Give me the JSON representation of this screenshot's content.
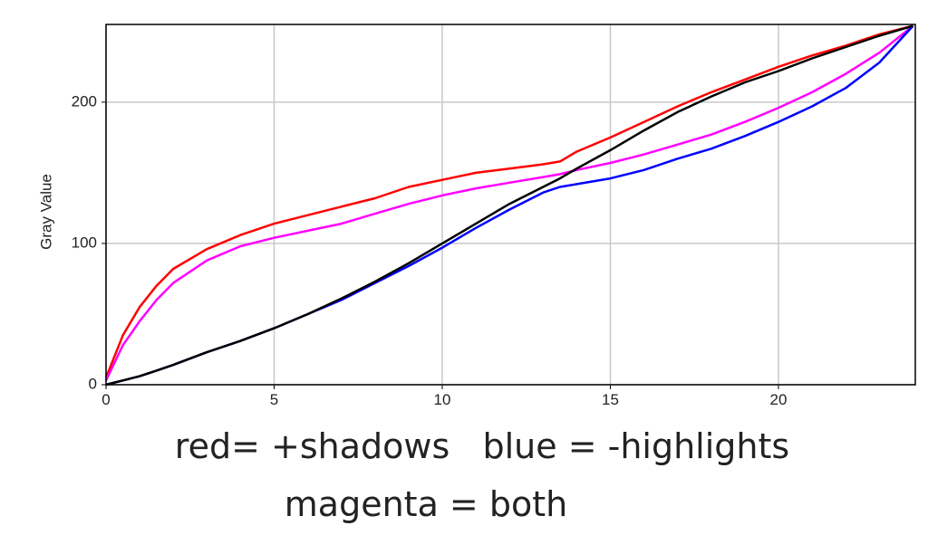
{
  "chart_data": {
    "type": "line",
    "ylabel": "Gray Value",
    "annotations": [
      "red= +shadows   blue = -highlights",
      "magenta = both"
    ],
    "x": [
      0,
      0.5,
      1,
      1.5,
      2,
      3,
      4,
      5,
      6,
      7,
      8,
      9,
      10,
      11,
      12,
      13,
      13.5,
      14,
      15,
      16,
      17,
      18,
      19,
      20,
      21,
      22,
      23,
      24
    ],
    "series": [
      {
        "color": "#ff0000",
        "values": [
          5,
          35,
          55,
          70,
          82,
          96,
          106,
          114,
          120,
          126,
          132,
          140,
          145,
          150,
          153,
          156,
          158,
          165,
          175,
          186,
          197,
          207,
          216,
          225,
          233,
          240,
          248,
          254
        ]
      },
      {
        "color": "#ff00ff",
        "values": [
          3,
          28,
          45,
          60,
          72,
          88,
          98,
          104,
          109,
          114,
          121,
          128,
          134,
          139,
          143,
          147,
          149,
          152,
          157,
          163,
          170,
          177,
          186,
          196,
          207,
          220,
          235,
          254
        ]
      },
      {
        "color": "#0000ff",
        "values": [
          0,
          3,
          6,
          10,
          14,
          23,
          31,
          40,
          50,
          60,
          72,
          84,
          97,
          111,
          124,
          136,
          140,
          142,
          146,
          152,
          160,
          167,
          176,
          186,
          197,
          210,
          228,
          254
        ]
      },
      {
        "color": "#000000",
        "values": [
          0,
          3,
          6,
          10,
          14,
          23,
          31,
          40,
          50,
          61,
          73,
          86,
          100,
          114,
          128,
          140,
          146,
          153,
          166,
          180,
          193,
          204,
          214,
          222,
          231,
          239,
          247,
          254
        ]
      }
    ],
    "xlim": [
      0,
      24.07
    ],
    "ylim": [
      0,
      255
    ],
    "xticks": [
      0,
      5,
      10,
      15,
      20
    ],
    "yticks": [
      0,
      100,
      200
    ],
    "grid": true
  }
}
